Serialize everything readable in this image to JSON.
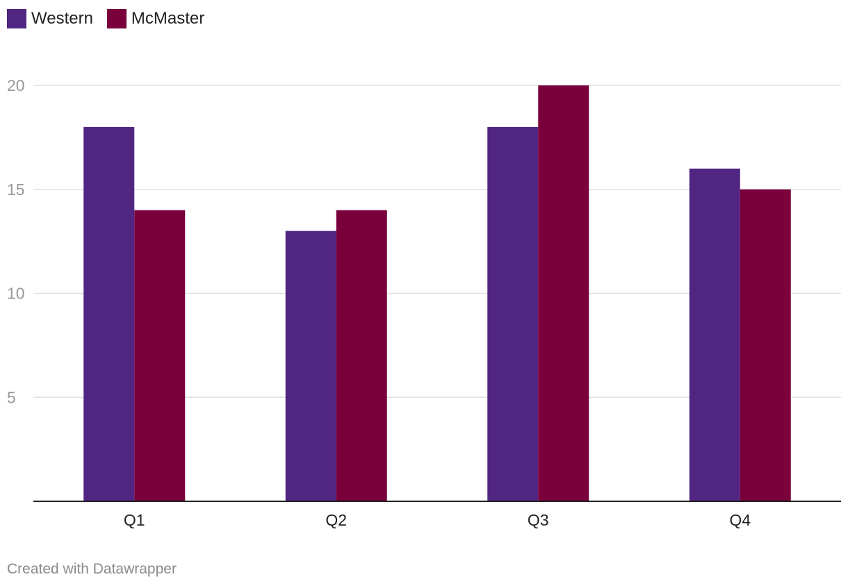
{
  "chart_data": {
    "type": "bar",
    "categories": [
      "Q1",
      "Q2",
      "Q3",
      "Q4"
    ],
    "series": [
      {
        "name": "Western",
        "values": [
          18,
          13,
          18,
          16
        ],
        "color": "#512582"
      },
      {
        "name": "McMaster",
        "values": [
          14,
          14,
          20,
          15
        ],
        "color": "#7a003c"
      }
    ],
    "ylim": [
      0,
      20
    ],
    "yticks": [
      5,
      10,
      15,
      20
    ],
    "grid": true,
    "legend_position": "top-left",
    "title": "",
    "xlabel": "",
    "ylabel": ""
  },
  "footer": {
    "credit": "Created with Datawrapper"
  },
  "colors": {
    "gridline": "#e0e0e0",
    "axis": "#222222",
    "tick_label": "#999999",
    "category_label": "#222222"
  }
}
